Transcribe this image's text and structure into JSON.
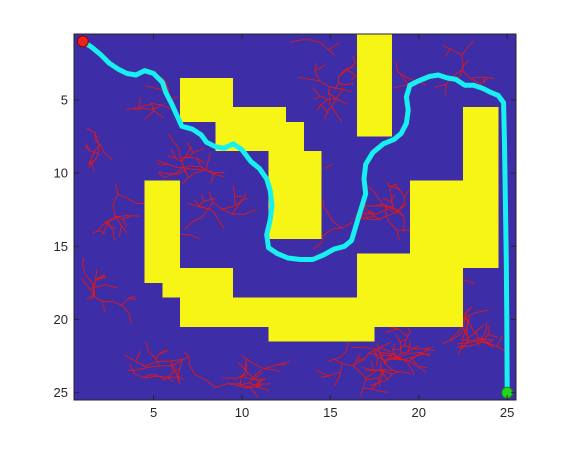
{
  "chart_data": {
    "type": "map",
    "title": "",
    "xlabel": "",
    "ylabel": "",
    "xlim": [
      0.5,
      25.5
    ],
    "ylim": [
      25.5,
      0.5
    ],
    "y_reversed": true,
    "x_ticks": [
      5,
      10,
      15,
      20,
      25
    ],
    "y_ticks": [
      5,
      10,
      15,
      20,
      25
    ],
    "x_tick_labels": [
      "5",
      "10",
      "15",
      "20",
      "25"
    ],
    "y_tick_labels": [
      "5",
      "10",
      "15",
      "20",
      "25"
    ],
    "grid": false,
    "colors": {
      "free_space": "#3d2da6",
      "obstacle": "#f7f516",
      "tree": "#e01a1a",
      "path": "#18f0f0",
      "start": "#e8231b",
      "goal": "#21d421",
      "axis": "#262626"
    },
    "obstacles": [
      {
        "x0": 16.5,
        "x1": 18.5,
        "y0": 0.5,
        "y1": 7.5
      },
      {
        "x0": 6.5,
        "x1": 9.5,
        "y0": 3.5,
        "y1": 6.5
      },
      {
        "x0": 8.5,
        "x1": 12.5,
        "y0": 5.5,
        "y1": 6.5
      },
      {
        "x0": 8.5,
        "x1": 13.5,
        "y0": 6.5,
        "y1": 8.5
      },
      {
        "x0": 11.5,
        "x1": 14.5,
        "y0": 8.5,
        "y1": 14.5
      },
      {
        "x0": 22.5,
        "x1": 24.5,
        "y0": 5.5,
        "y1": 16.5
      },
      {
        "x0": 4.5,
        "x1": 6.5,
        "y0": 10.5,
        "y1": 17.5
      },
      {
        "x0": 19.5,
        "x1": 22.5,
        "y0": 10.5,
        "y1": 16.5
      },
      {
        "x0": 16.5,
        "x1": 22.5,
        "y0": 15.5,
        "y1": 20.5
      },
      {
        "x0": 5.5,
        "x1": 9.5,
        "y0": 16.5,
        "y1": 18.5
      },
      {
        "x0": 6.5,
        "x1": 9.5,
        "y0": 18.5,
        "y1": 20.5
      },
      {
        "x0": 9.5,
        "x1": 16.5,
        "y0": 18.5,
        "y1": 20.5
      },
      {
        "x0": 11.5,
        "x1": 17.5,
        "y0": 20.5,
        "y1": 21.5
      }
    ],
    "start": {
      "x": 1,
      "y": 1
    },
    "goal": {
      "x": 25,
      "y": 25
    },
    "path": [
      [
        1,
        1
      ],
      [
        1.5,
        1.4
      ],
      [
        2.0,
        1.9
      ],
      [
        2.5,
        2.5
      ],
      [
        3.0,
        2.9
      ],
      [
        3.5,
        3.2
      ],
      [
        4.0,
        3.3
      ],
      [
        4.5,
        3.0
      ],
      [
        5.0,
        3.2
      ],
      [
        5.5,
        3.8
      ],
      [
        5.7,
        4.5
      ],
      [
        6.0,
        5.2
      ],
      [
        6.3,
        6.0
      ],
      [
        6.6,
        6.8
      ],
      [
        7.2,
        7.0
      ],
      [
        7.7,
        7.4
      ],
      [
        8.0,
        7.9
      ],
      [
        8.5,
        8.2
      ],
      [
        9.0,
        8.3
      ],
      [
        9.5,
        8.0
      ],
      [
        10.0,
        8.4
      ],
      [
        10.5,
        9.2
      ],
      [
        11.0,
        9.7
      ],
      [
        11.4,
        10.4
      ],
      [
        11.6,
        11.2
      ],
      [
        11.7,
        12.2
      ],
      [
        11.6,
        13.2
      ],
      [
        11.4,
        14.2
      ],
      [
        11.5,
        15.1
      ],
      [
        12.0,
        15.5
      ],
      [
        12.6,
        15.8
      ],
      [
        13.3,
        15.9
      ],
      [
        14.0,
        15.9
      ],
      [
        14.6,
        15.6
      ],
      [
        15.2,
        15.2
      ],
      [
        15.8,
        15.0
      ],
      [
        16.2,
        14.6
      ],
      [
        16.4,
        13.8
      ],
      [
        16.6,
        13.0
      ],
      [
        16.8,
        12.2
      ],
      [
        17.0,
        11.4
      ],
      [
        16.9,
        10.4
      ],
      [
        17.0,
        9.4
      ],
      [
        17.4,
        8.6
      ],
      [
        18.0,
        8.0
      ],
      [
        18.6,
        7.7
      ],
      [
        19.0,
        7.3
      ],
      [
        19.3,
        6.6
      ],
      [
        19.4,
        5.7
      ],
      [
        19.3,
        4.8
      ],
      [
        19.5,
        4.0
      ],
      [
        20.0,
        3.7
      ],
      [
        20.6,
        3.4
      ],
      [
        21.1,
        3.3
      ],
      [
        21.6,
        3.5
      ],
      [
        22.1,
        3.6
      ],
      [
        22.6,
        4.0
      ],
      [
        23.1,
        4.0
      ],
      [
        23.6,
        4.2
      ],
      [
        24.1,
        4.5
      ],
      [
        24.5,
        4.7
      ],
      [
        24.8,
        5.2
      ],
      [
        24.85,
        8.0
      ],
      [
        24.9,
        12.0
      ],
      [
        24.95,
        16.0
      ],
      [
        24.98,
        20.0
      ],
      [
        25,
        25
      ]
    ]
  }
}
